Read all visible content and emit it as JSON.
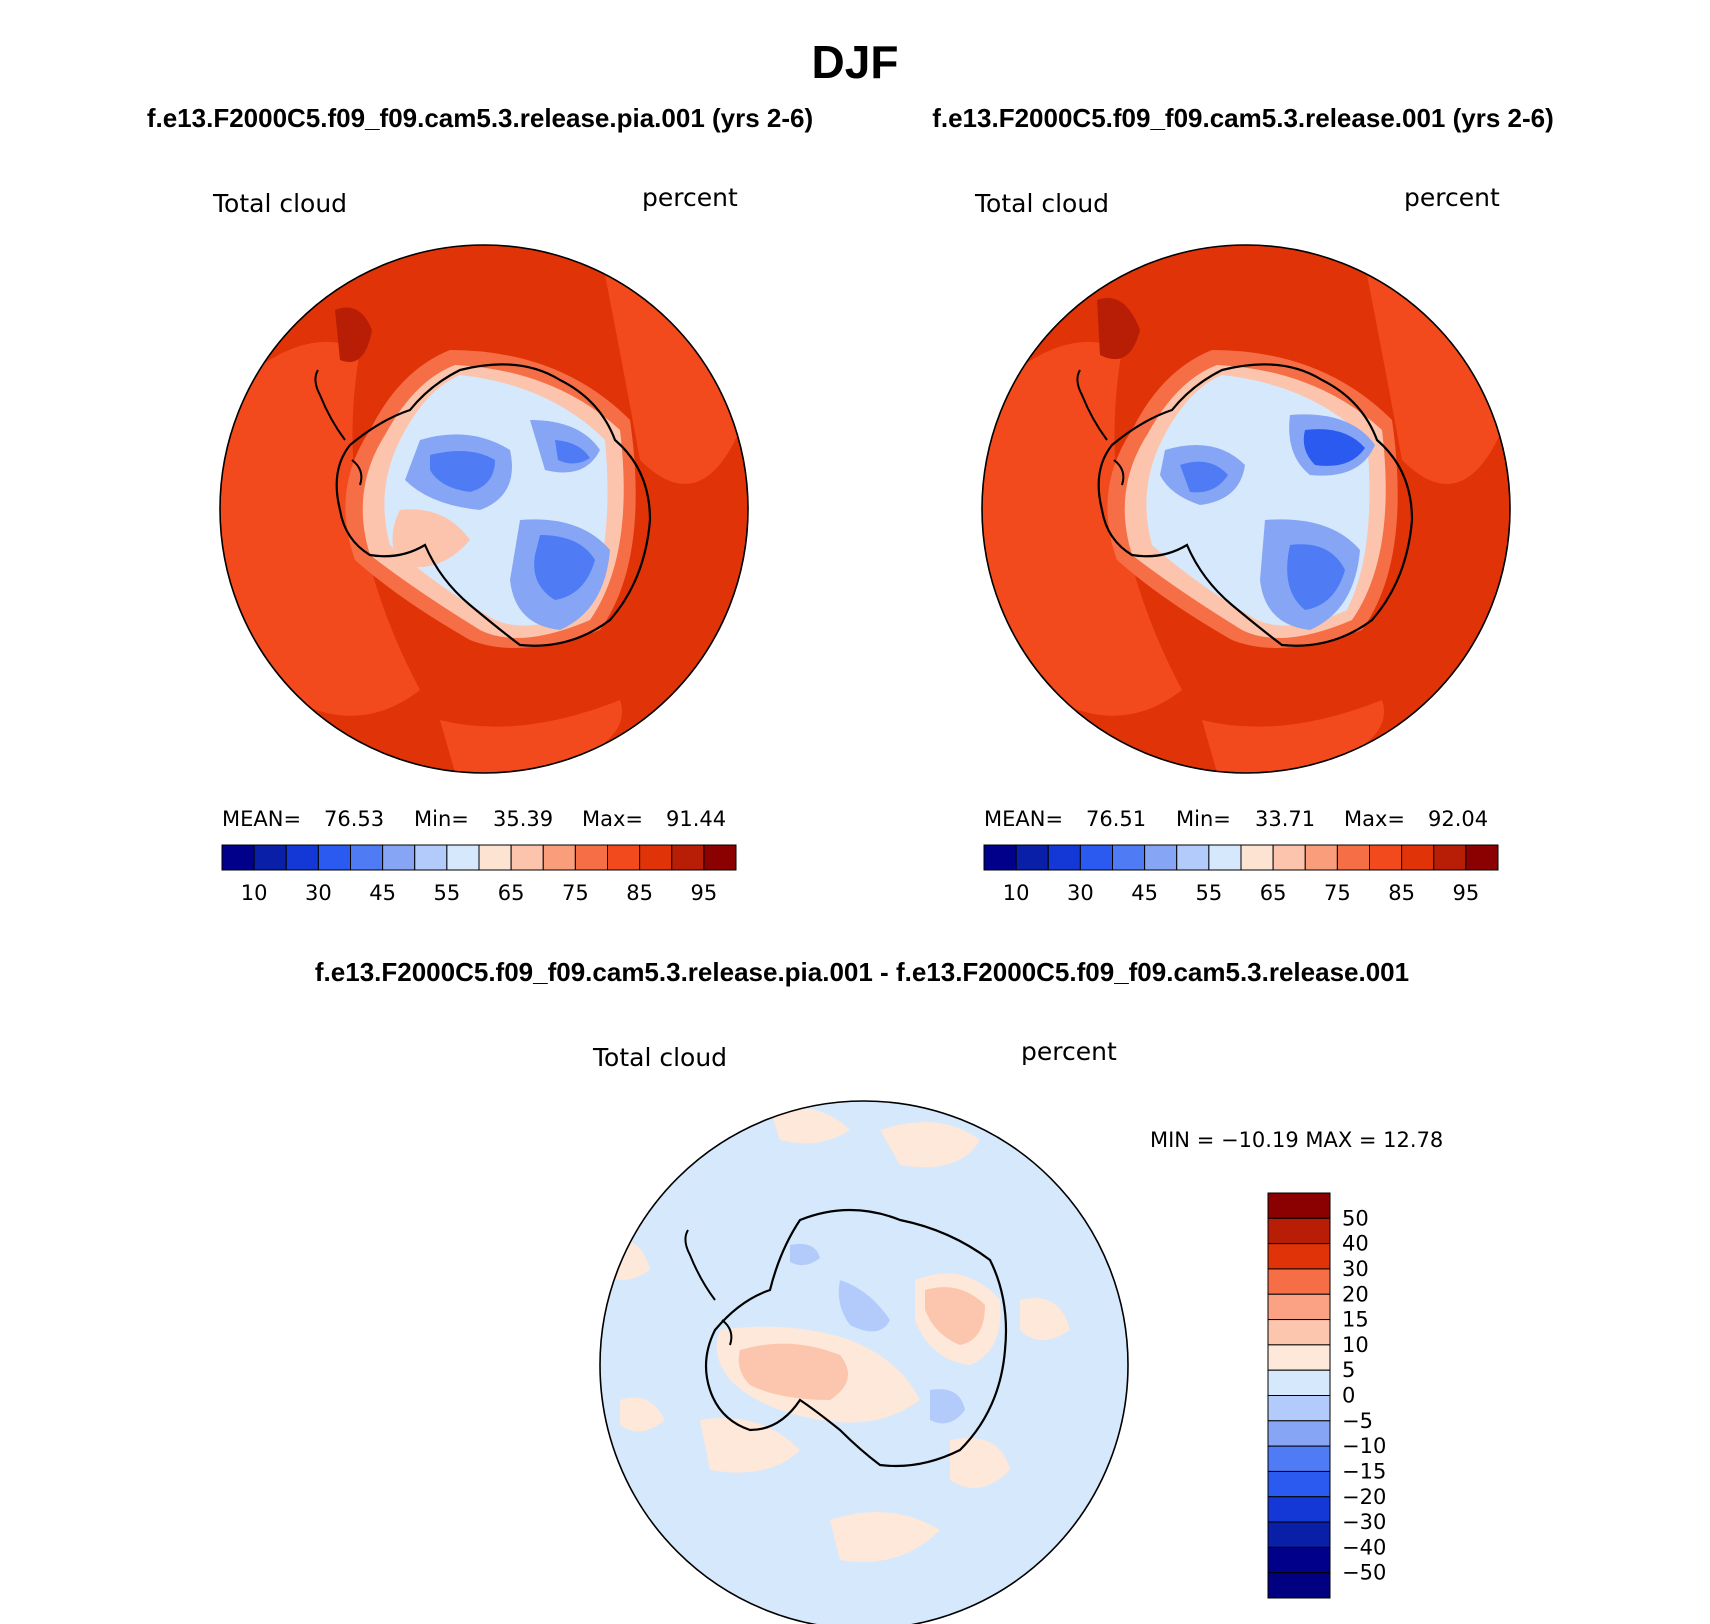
{
  "figure": {
    "title": "DJF",
    "panel_left_title": "f.e13.F2000C5.f09_f09.cam5.3.release.pia.001 (yrs 2-6)",
    "panel_right_title": "f.e13.F2000C5.f09_f09.cam5.3.release.001 (yrs 2-6)",
    "diff_title": "f.e13.F2000C5.f09_f09.cam5.3.release.pia.001 - f.e13.F2000C5.f09_f09.cam5.3.release.001"
  },
  "panels": {
    "left": {
      "variable": "Total cloud",
      "units": "percent",
      "mean_label": "MEAN=",
      "mean": "76.53",
      "min_label": "Min=",
      "min": "35.39",
      "max_label": "Max=",
      "max": "91.44"
    },
    "right": {
      "variable": "Total cloud",
      "units": "percent",
      "mean_label": "MEAN=",
      "mean": "76.51",
      "min_label": "Min=",
      "min": "33.71",
      "max_label": "Max=",
      "max": "92.04"
    },
    "diff": {
      "variable": "Total cloud",
      "units": "percent",
      "minmax": "MIN = −10.19 MAX =   12.78"
    }
  },
  "colorbar_main": {
    "colors": [
      "#00008b",
      "#0a1fa8",
      "#1438d6",
      "#2a5af0",
      "#4f7cf5",
      "#86a6f5",
      "#b3cbfb",
      "#d6e8fb",
      "#fde3d2",
      "#fcc4ac",
      "#f99d7a",
      "#f66e46",
      "#f24a1c",
      "#e03308",
      "#b81e06",
      "#8b0000"
    ],
    "tick_labels": [
      "10",
      "30",
      "45",
      "55",
      "65",
      "75",
      "85",
      "95"
    ]
  },
  "colorbar_diff": {
    "colors": [
      "#8b0000",
      "#b81e06",
      "#e03308",
      "#f66e46",
      "#fca284",
      "#fcc6ae",
      "#fde8da",
      "#d6e8fb",
      "#b3cbfb",
      "#86a6f5",
      "#4f7cf5",
      "#2a5af0",
      "#1438d6",
      "#0a1fa8",
      "#00008b",
      "#000080"
    ],
    "tick_labels": [
      "50",
      "40",
      "30",
      "20",
      "15",
      "10",
      "5",
      "0",
      "−5",
      "−10",
      "−15",
      "−20",
      "−30",
      "−40",
      "−50"
    ]
  },
  "chart_data": [
    {
      "type": "heatmap",
      "title": "Total cloud",
      "subtitle": "f.e13.F2000C5.f09_f09.cam5.3.release.pia.001 (yrs 2-6)",
      "units": "percent",
      "projection": "south polar stereographic",
      "mean": 76.53,
      "min": 35.39,
      "max": 91.44,
      "levels": [
        10,
        20,
        30,
        40,
        45,
        50,
        55,
        60,
        65,
        70,
        75,
        80,
        85,
        90,
        95
      ]
    },
    {
      "type": "heatmap",
      "title": "Total cloud",
      "subtitle": "f.e13.F2000C5.f09_f09.cam5.3.release.001 (yrs 2-6)",
      "units": "percent",
      "projection": "south polar stereographic",
      "mean": 76.51,
      "min": 33.71,
      "max": 92.04,
      "levels": [
        10,
        20,
        30,
        40,
        45,
        50,
        55,
        60,
        65,
        70,
        75,
        80,
        85,
        90,
        95
      ]
    },
    {
      "type": "heatmap",
      "title": "Total cloud",
      "subtitle": "f.e13.F2000C5.f09_f09.cam5.3.release.pia.001 - f.e13.F2000C5.f09_f09.cam5.3.release.001",
      "units": "percent",
      "projection": "south polar stereographic",
      "min": -10.19,
      "max": 12.78,
      "levels": [
        -50,
        -40,
        -30,
        -20,
        -15,
        -10,
        -5,
        0,
        5,
        10,
        15,
        20,
        30,
        40,
        50
      ]
    }
  ]
}
